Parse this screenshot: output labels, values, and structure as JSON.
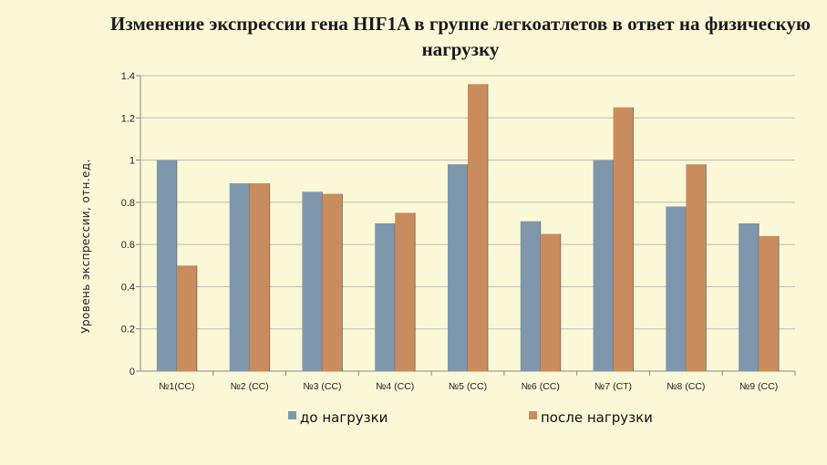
{
  "colors": {
    "background": "#fbf8d8",
    "series_before": "#7f97ad",
    "series_after": "#c98c5e",
    "grid": "#bdbdb0"
  },
  "chart_data": {
    "type": "bar",
    "title": "Изменение экспрессии гена HIF1A в группе легкоатлетов в ответ на физическую нагрузку",
    "xlabel": "",
    "ylabel": "Уровень экспрессии, отн.ед.",
    "ylim": [
      0,
      1.4
    ],
    "yticks": [
      "0",
      "0.2",
      "0.4",
      "0.6",
      "0.8",
      "1",
      "1.2",
      "1.4"
    ],
    "grid": true,
    "legend_position": "bottom",
    "categories": [
      "№1(CC)",
      "№2 (CC)",
      "№3 (CC)",
      "№4 (CC)",
      "№5 (CC)",
      "№6 (CC)",
      "№7 (CT)",
      "№8 (CC)",
      "№9 (CC)"
    ],
    "series": [
      {
        "name": "до нагрузки",
        "values": [
          1.0,
          0.89,
          0.85,
          0.7,
          0.98,
          0.71,
          1.0,
          0.78,
          0.7
        ]
      },
      {
        "name": "после нагрузки",
        "values": [
          0.5,
          0.89,
          0.84,
          0.75,
          1.36,
          0.65,
          1.25,
          0.98,
          0.64
        ]
      }
    ]
  }
}
